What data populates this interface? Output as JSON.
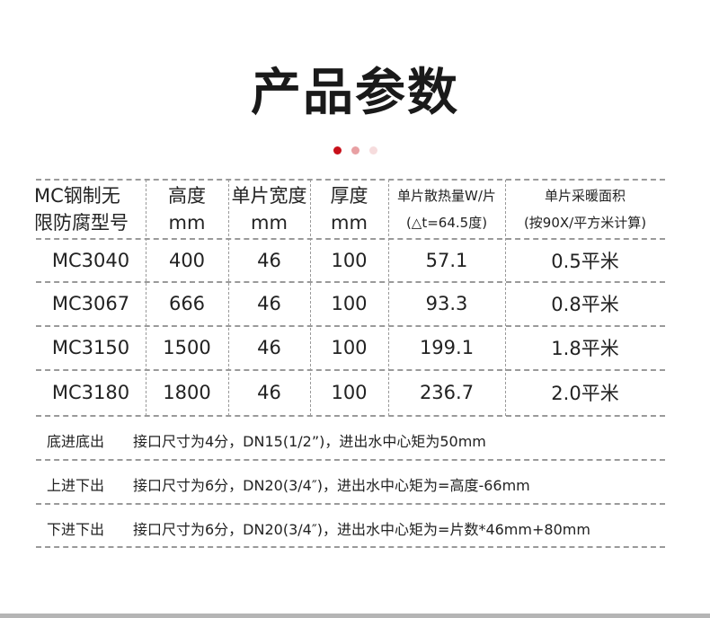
{
  "title": "产品参数",
  "accent_colors": {
    "dot1": "#c8101a",
    "dot2": "#e8a0a3",
    "dot3": "#f6dcdd"
  },
  "table": {
    "headers": [
      {
        "line1": "MC钢制无",
        "line2": "限防腐型号"
      },
      {
        "line1": "高度",
        "line2": "mm"
      },
      {
        "line1": "单片宽度",
        "line2": "mm"
      },
      {
        "line1": "厚度",
        "line2": "mm"
      },
      {
        "line1": "单片散热量W/片",
        "line2": "(△t=64.5度)"
      },
      {
        "line1": "单片采暖面积",
        "line2": "(按90X/平方米计算)"
      }
    ],
    "rows": [
      [
        "MC3040",
        "400",
        "46",
        "100",
        "57.1",
        "0.5平米"
      ],
      [
        "MC3067",
        "666",
        "46",
        "100",
        "93.3",
        "0.8平米"
      ],
      [
        "MC3150",
        "1500",
        "46",
        "100",
        "199.1",
        "1.8平米"
      ],
      [
        "MC3180",
        "1800",
        "46",
        "100",
        "236.7",
        "2.0平米"
      ]
    ]
  },
  "notes": [
    {
      "label": "底进底出",
      "text": "接口尺寸为4分，DN15(1/2”)，进出水中心矩为50mm"
    },
    {
      "label": "上进下出",
      "text": "接口尺寸为6分，DN20(3/4″)，进出水中心矩为=高度-66mm"
    },
    {
      "label": "下进下出",
      "text": "接口尺寸为6分，DN20(3/4″)，进出水中心矩为=片数*46mm+80mm"
    }
  ]
}
